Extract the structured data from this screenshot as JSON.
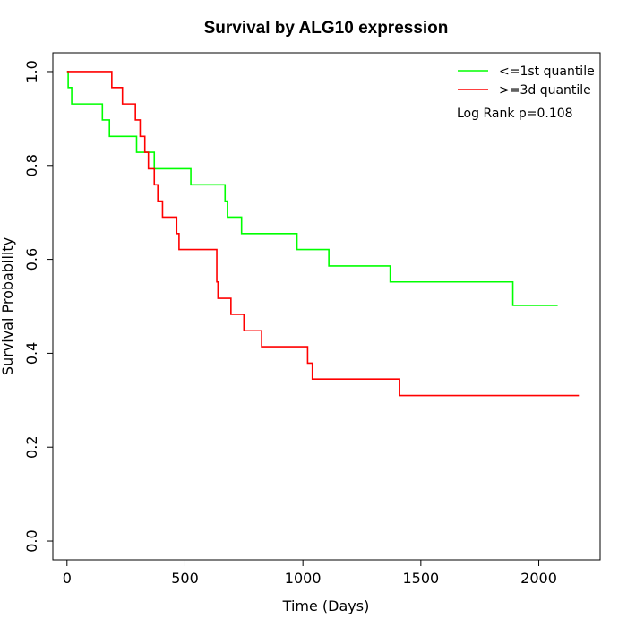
{
  "chart_data": {
    "type": "line",
    "title": "Survival by ALG10 expression",
    "xlabel": "Time (Days)",
    "ylabel": "Survival Probability",
    "xlim": [
      -60,
      2260
    ],
    "ylim": [
      -0.04,
      1.04
    ],
    "x_ticks": [
      0,
      500,
      1000,
      1500,
      2000
    ],
    "y_ticks": [
      0.0,
      0.2,
      0.4,
      0.6,
      0.8,
      1.0
    ],
    "x_tick_labels": [
      "0",
      "500",
      "1000",
      "1500",
      "2000"
    ],
    "y_tick_labels": [
      "0.0",
      "0.2",
      "0.4",
      "0.6",
      "0.8",
      "1.0"
    ],
    "grid": false,
    "legend_position": "top-right",
    "annotation": "Log Rank p=0.108",
    "series": [
      {
        "name": "<=1st quantile",
        "color": "#00ff00",
        "step_points": [
          [
            0,
            1.0
          ],
          [
            5,
            0.966
          ],
          [
            20,
            0.931
          ],
          [
            150,
            0.897
          ],
          [
            180,
            0.862
          ],
          [
            295,
            0.828
          ],
          [
            370,
            0.793
          ],
          [
            525,
            0.759
          ],
          [
            670,
            0.724
          ],
          [
            680,
            0.69
          ],
          [
            740,
            0.655
          ],
          [
            975,
            0.621
          ],
          [
            1110,
            0.586
          ],
          [
            1370,
            0.552
          ],
          [
            1890,
            0.502
          ],
          [
            2080,
            0.502
          ]
        ]
      },
      {
        "name": ">=3d quantile",
        "color": "#ff0000",
        "step_points": [
          [
            0,
            1.0
          ],
          [
            190,
            0.966
          ],
          [
            235,
            0.931
          ],
          [
            290,
            0.897
          ],
          [
            310,
            0.862
          ],
          [
            330,
            0.828
          ],
          [
            345,
            0.793
          ],
          [
            370,
            0.759
          ],
          [
            385,
            0.724
          ],
          [
            405,
            0.69
          ],
          [
            465,
            0.655
          ],
          [
            475,
            0.621
          ],
          [
            635,
            0.552
          ],
          [
            640,
            0.517
          ],
          [
            695,
            0.483
          ],
          [
            750,
            0.448
          ],
          [
            825,
            0.414
          ],
          [
            1020,
            0.379
          ],
          [
            1040,
            0.345
          ],
          [
            1410,
            0.31
          ],
          [
            2170,
            0.31
          ]
        ]
      }
    ]
  }
}
